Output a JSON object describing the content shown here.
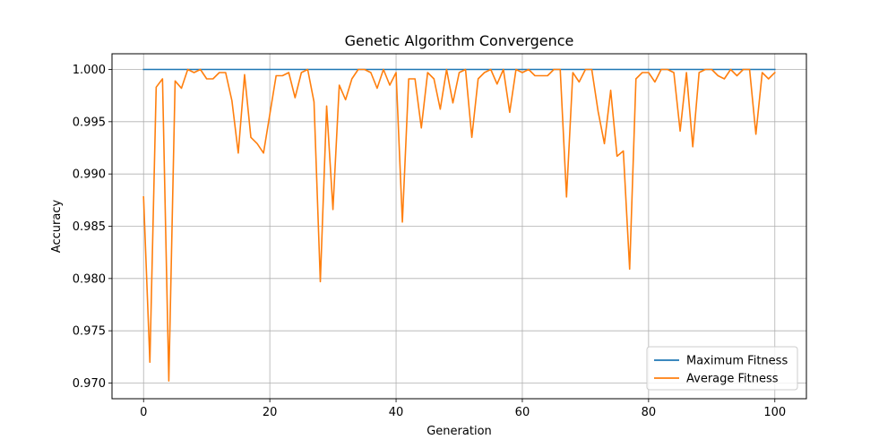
{
  "chart_data": {
    "type": "line",
    "title": "Genetic Algorithm Convergence",
    "xlabel": "Generation",
    "ylabel": "Accuracy",
    "xlim": [
      -5,
      105
    ],
    "ylim": [
      0.9685,
      1.0015
    ],
    "xticks": [
      0,
      20,
      40,
      60,
      80,
      100
    ],
    "yticks": [
      0.97,
      0.975,
      0.98,
      0.985,
      0.99,
      0.995,
      1.0
    ],
    "ytick_labels": [
      "0.970",
      "0.975",
      "0.980",
      "0.985",
      "0.990",
      "0.995",
      "1.000"
    ],
    "grid": true,
    "legend_position": "bottom-right",
    "series": [
      {
        "name": "Maximum Fitness",
        "color": "#1f77b4",
        "x": [
          0,
          100
        ],
        "values": [
          1.0,
          1.0
        ]
      },
      {
        "name": "Average Fitness",
        "color": "#ff7f0e",
        "x": [
          0,
          1,
          2,
          3,
          4,
          5,
          6,
          7,
          8,
          9,
          10,
          11,
          12,
          13,
          14,
          15,
          16,
          17,
          18,
          19,
          20,
          21,
          22,
          23,
          24,
          25,
          26,
          27,
          28,
          29,
          30,
          31,
          32,
          33,
          34,
          35,
          36,
          37,
          38,
          39,
          40,
          41,
          42,
          43,
          44,
          45,
          46,
          47,
          48,
          49,
          50,
          51,
          52,
          53,
          54,
          55,
          56,
          57,
          58,
          59,
          60,
          61,
          62,
          63,
          64,
          65,
          66,
          67,
          68,
          69,
          70,
          71,
          72,
          73,
          74,
          75,
          76,
          77,
          78,
          79,
          80,
          81,
          82,
          83,
          84,
          85,
          86,
          87,
          88,
          89,
          90,
          91,
          92,
          93,
          94,
          95,
          96,
          97,
          98,
          99,
          100
        ],
        "values": [
          0.9878,
          0.972,
          0.9983,
          0.9991,
          0.9702,
          0.9989,
          0.9982,
          1.0,
          0.9997,
          1.0,
          0.9991,
          0.9991,
          0.9997,
          0.9997,
          0.997,
          0.992,
          0.9995,
          0.9935,
          0.9929,
          0.992,
          0.9957,
          0.9994,
          0.9994,
          0.9997,
          0.9973,
          0.9997,
          1.0,
          0.9969,
          0.9797,
          0.9965,
          0.9866,
          0.9985,
          0.9971,
          0.9991,
          1.0,
          1.0,
          0.9997,
          0.9982,
          1.0,
          0.9985,
          0.9997,
          0.9854,
          0.9991,
          0.9991,
          0.9944,
          0.9997,
          0.9991,
          0.9962,
          1.0,
          0.9968,
          0.9997,
          1.0,
          0.9935,
          0.9991,
          0.9997,
          1.0,
          0.9986,
          1.0,
          0.9959,
          1.0,
          0.9997,
          1.0,
          0.9994,
          0.9994,
          0.9994,
          1.0,
          1.0,
          0.9878,
          0.9997,
          0.9988,
          1.0,
          1.0,
          0.996,
          0.9929,
          0.998,
          0.9917,
          0.9922,
          0.9809,
          0.9991,
          0.9997,
          0.9997,
          0.9988,
          1.0,
          1.0,
          0.9997,
          0.9941,
          0.9997,
          0.9926,
          0.9997,
          1.0,
          1.0,
          0.9994,
          0.9991,
          1.0,
          0.9994,
          1.0,
          1.0,
          0.9938,
          0.9997,
          0.9991,
          0.9997
        ]
      }
    ]
  }
}
